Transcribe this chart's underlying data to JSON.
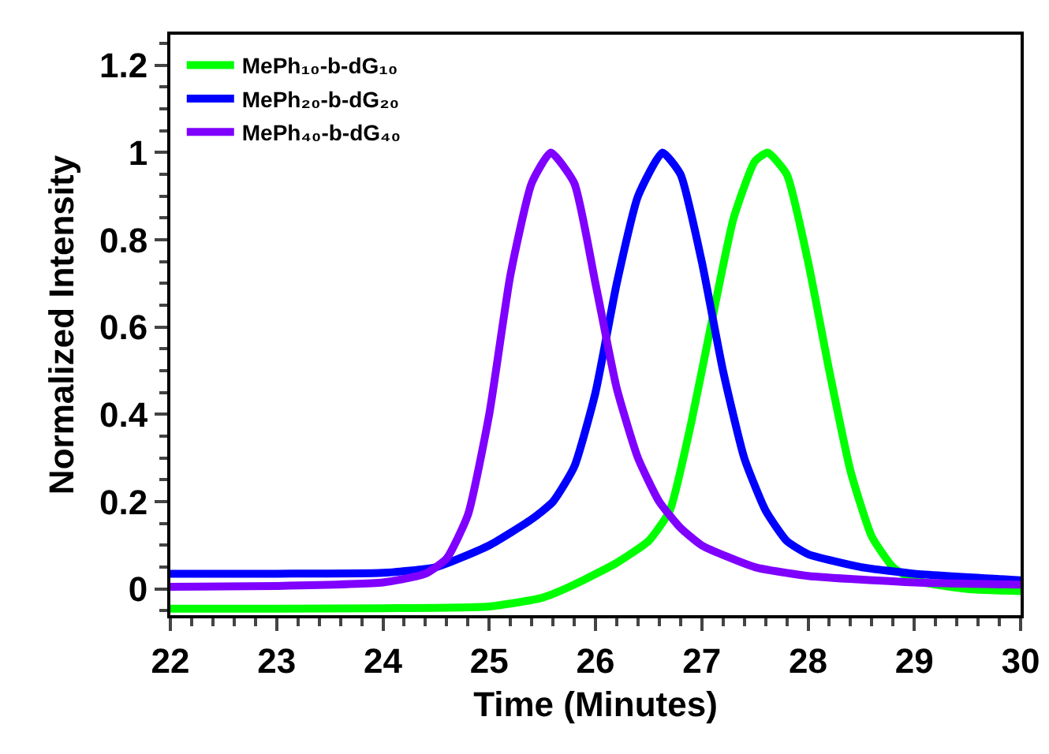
{
  "chart_data": {
    "type": "line",
    "xlabel": "Time (Minutes)",
    "ylabel": "Normalized Intensity",
    "xlim": [
      22,
      30
    ],
    "xticks": [
      22,
      23,
      24,
      25,
      26,
      27,
      28,
      29,
      30
    ],
    "ylim": [
      -0.06,
      1.27
    ],
    "yticks": [
      0,
      0.2,
      0.4,
      0.6,
      0.8,
      1,
      1.2
    ],
    "grid": false,
    "legend": "top left",
    "marker": "none",
    "line_style": "solid",
    "series": [
      {
        "name": "MePh₁₀-b-dG₁₀",
        "color": "#00ff00",
        "x": [
          22,
          23,
          24,
          25,
          25.5,
          25.8,
          26.2,
          26.5,
          26.7,
          26.9,
          27.1,
          27.3,
          27.5,
          27.62,
          27.8,
          28,
          28.2,
          28.4,
          28.6,
          28.8,
          29,
          29.5,
          30
        ],
        "values": [
          -0.045,
          -0.045,
          -0.044,
          -0.04,
          -0.02,
          0.01,
          0.06,
          0.11,
          0.18,
          0.38,
          0.62,
          0.85,
          0.98,
          1,
          0.95,
          0.75,
          0.5,
          0.27,
          0.12,
          0.05,
          0.02,
          0,
          -0.005
        ]
      },
      {
        "name": "MePh₂₀-b-dG₂₀",
        "color": "#0000ff",
        "x": [
          22,
          23,
          24,
          24.5,
          25,
          25.4,
          25.6,
          25.8,
          26,
          26.2,
          26.4,
          26.63,
          26.8,
          27,
          27.2,
          27.4,
          27.6,
          27.8,
          28,
          28.5,
          29,
          30
        ],
        "values": [
          0.035,
          0.035,
          0.037,
          0.05,
          0.1,
          0.16,
          0.2,
          0.28,
          0.45,
          0.7,
          0.9,
          1,
          0.95,
          0.75,
          0.5,
          0.3,
          0.18,
          0.11,
          0.08,
          0.05,
          0.035,
          0.02
        ]
      },
      {
        "name": "MePh₄₀-b-dG₄₀",
        "color": "#7f00ff",
        "x": [
          22,
          23,
          24,
          24.4,
          24.6,
          24.8,
          25,
          25.2,
          25.4,
          25.58,
          25.8,
          26,
          26.2,
          26.4,
          26.6,
          26.8,
          27,
          27.5,
          28,
          29,
          30
        ],
        "values": [
          0.005,
          0.007,
          0.015,
          0.035,
          0.07,
          0.17,
          0.4,
          0.72,
          0.93,
          1,
          0.93,
          0.7,
          0.46,
          0.3,
          0.2,
          0.14,
          0.1,
          0.05,
          0.03,
          0.015,
          0.01
        ]
      }
    ]
  }
}
